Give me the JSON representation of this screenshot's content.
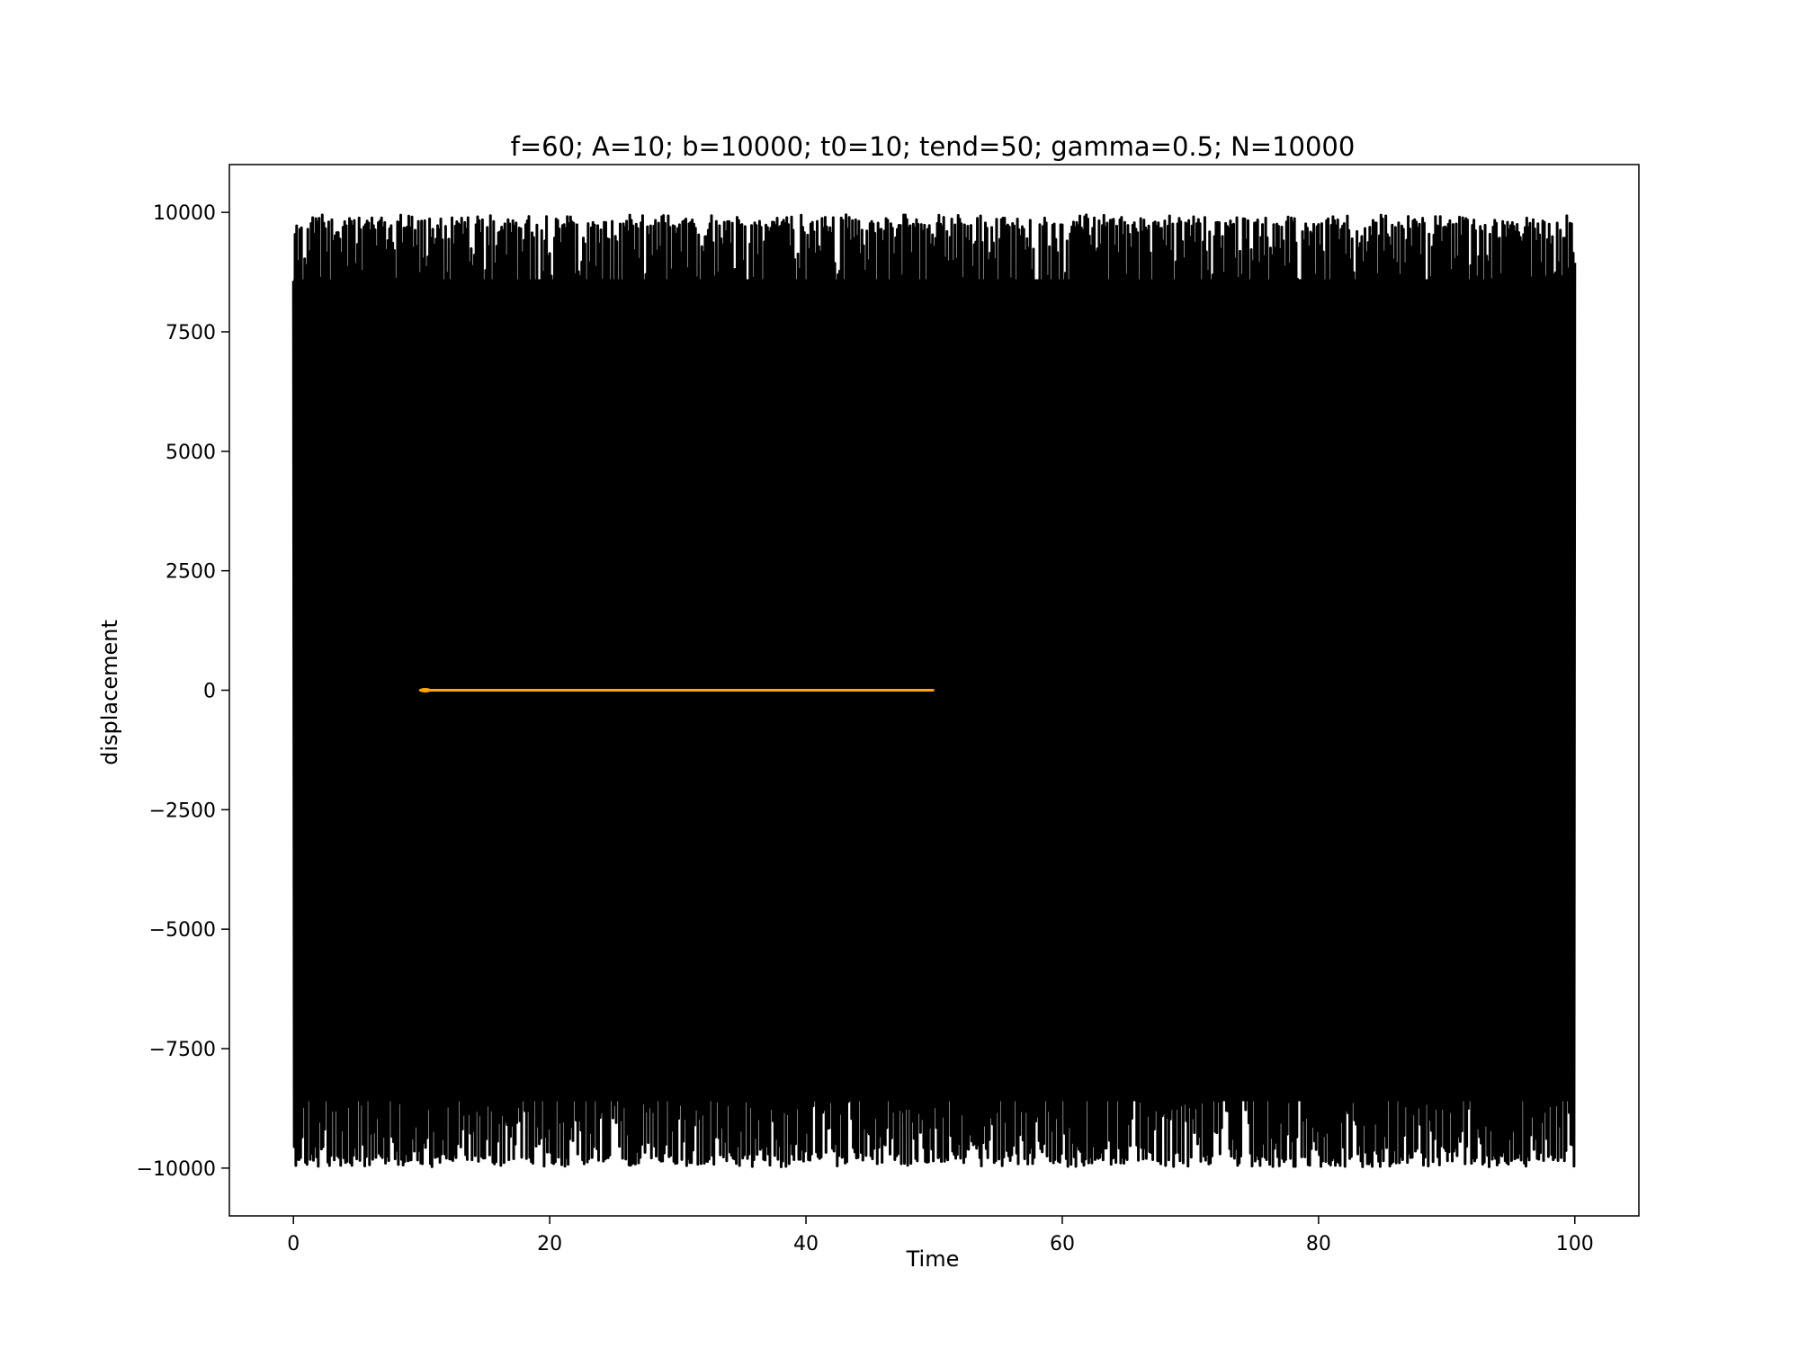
{
  "chart_data": {
    "type": "line",
    "title": "f=60; A=10; b=10000; t0=10; tend=50; gamma=0.5; N=10000",
    "xlabel": "Time",
    "ylabel": "displacement",
    "xlim": [
      -5,
      105
    ],
    "ylim": [
      -11000,
      11000
    ],
    "xticks": [
      0,
      20,
      40,
      60,
      80,
      100
    ],
    "xtick_labels": [
      "0",
      "20",
      "40",
      "60",
      "80",
      "100"
    ],
    "yticks": [
      -10000,
      -7500,
      -5000,
      -2500,
      0,
      2500,
      5000,
      7500,
      10000
    ],
    "ytick_labels": [
      "−10000",
      "−7500",
      "−5000",
      "−2500",
      "0",
      "2500",
      "5000",
      "7500",
      "10000"
    ],
    "grid": false,
    "legend": "none",
    "series": [
      {
        "color": "#000000",
        "description_kind": "dense oscillation",
        "x_range": [
          0,
          100
        ],
        "y_range": [
          -10000,
          10000
        ],
        "typical_top": 9700,
        "typical_bottom": -9750
      },
      {
        "color": "#ffa500",
        "x": [
          10,
          50
        ],
        "y": [
          0,
          0
        ]
      }
    ],
    "colors": {
      "signal": "#000000",
      "highlight": "#ffa500"
    }
  }
}
